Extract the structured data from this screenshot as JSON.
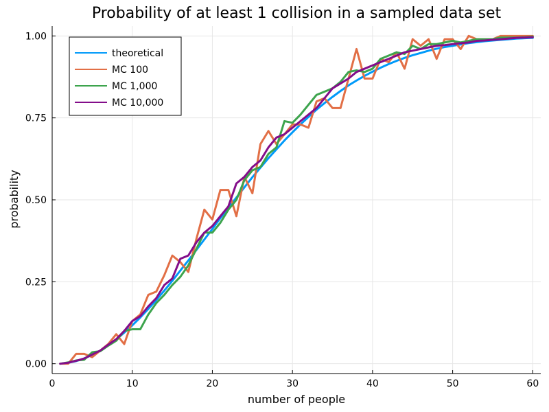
{
  "chart_data": {
    "type": "line",
    "title": "Probability of at least 1 collision in a sampled data set",
    "xlabel": "number of people",
    "ylabel": "probability",
    "xlim": [
      0,
      61
    ],
    "ylim": [
      -0.03,
      1.03
    ],
    "xticks": [
      0,
      10,
      20,
      30,
      40,
      50,
      60
    ],
    "xtick_labels": [
      "0",
      "10",
      "20",
      "30",
      "40",
      "50",
      "60"
    ],
    "yticks": [
      0.0,
      0.25,
      0.5,
      0.75,
      1.0
    ],
    "ytick_labels": [
      "0.00",
      "0.25",
      "0.50",
      "0.75",
      "1.00"
    ],
    "grid": true,
    "legend_position": "top-left",
    "x": [
      1,
      2,
      3,
      4,
      5,
      6,
      7,
      8,
      9,
      10,
      11,
      12,
      13,
      14,
      15,
      16,
      17,
      18,
      19,
      20,
      21,
      22,
      23,
      24,
      25,
      26,
      27,
      28,
      29,
      30,
      31,
      32,
      33,
      34,
      35,
      36,
      37,
      38,
      39,
      40,
      41,
      42,
      43,
      44,
      45,
      46,
      47,
      48,
      49,
      50,
      51,
      52,
      53,
      54,
      55,
      56,
      57,
      58,
      59,
      60
    ],
    "series": [
      {
        "name": "theoretical",
        "color": "#009AFA",
        "values": [
          0.0,
          0.003,
          0.008,
          0.016,
          0.027,
          0.04,
          0.056,
          0.074,
          0.095,
          0.117,
          0.141,
          0.167,
          0.194,
          0.223,
          0.253,
          0.284,
          0.315,
          0.347,
          0.379,
          0.411,
          0.444,
          0.476,
          0.507,
          0.538,
          0.569,
          0.598,
          0.627,
          0.654,
          0.681,
          0.706,
          0.73,
          0.753,
          0.775,
          0.795,
          0.814,
          0.832,
          0.849,
          0.864,
          0.878,
          0.891,
          0.903,
          0.914,
          0.924,
          0.933,
          0.941,
          0.948,
          0.955,
          0.961,
          0.966,
          0.97,
          0.974,
          0.978,
          0.981,
          0.984,
          0.986,
          0.988,
          0.99,
          0.992,
          0.993,
          0.994
        ]
      },
      {
        "name": "MC 100",
        "color": "#E26F46",
        "values": [
          0.0,
          0.0,
          0.03,
          0.03,
          0.02,
          0.04,
          0.06,
          0.09,
          0.06,
          0.13,
          0.15,
          0.21,
          0.22,
          0.27,
          0.33,
          0.31,
          0.28,
          0.38,
          0.47,
          0.44,
          0.53,
          0.53,
          0.45,
          0.57,
          0.52,
          0.67,
          0.71,
          0.67,
          0.7,
          0.73,
          0.73,
          0.72,
          0.8,
          0.81,
          0.78,
          0.78,
          0.87,
          0.96,
          0.87,
          0.87,
          0.93,
          0.92,
          0.95,
          0.9,
          0.99,
          0.97,
          0.99,
          0.93,
          0.99,
          0.99,
          0.96,
          1.0,
          0.99,
          0.99,
          0.99,
          1.0,
          1.0,
          1.0,
          1.0,
          1.0
        ]
      },
      {
        "name": "MC 1,000",
        "color": "#3DA44D",
        "values": [
          0.0,
          0.004,
          0.01,
          0.012,
          0.035,
          0.038,
          0.055,
          0.07,
          0.1,
          0.105,
          0.105,
          0.15,
          0.185,
          0.21,
          0.24,
          0.265,
          0.3,
          0.35,
          0.4,
          0.4,
          0.43,
          0.47,
          0.5,
          0.56,
          0.59,
          0.6,
          0.64,
          0.66,
          0.74,
          0.735,
          0.76,
          0.79,
          0.82,
          0.83,
          0.84,
          0.86,
          0.89,
          0.895,
          0.89,
          0.9,
          0.93,
          0.94,
          0.95,
          0.945,
          0.97,
          0.96,
          0.975,
          0.975,
          0.98,
          0.985,
          0.98,
          0.985,
          0.99,
          0.99,
          0.99,
          0.995,
          0.995,
          0.995,
          0.996,
          0.998
        ]
      },
      {
        "name": "MC 10,000",
        "color": "#830D8A",
        "values": [
          0.0,
          0.003,
          0.009,
          0.016,
          0.028,
          0.04,
          0.058,
          0.075,
          0.1,
          0.13,
          0.145,
          0.175,
          0.2,
          0.24,
          0.26,
          0.32,
          0.33,
          0.37,
          0.4,
          0.42,
          0.45,
          0.48,
          0.55,
          0.57,
          0.6,
          0.62,
          0.66,
          0.69,
          0.7,
          0.72,
          0.74,
          0.76,
          0.78,
          0.81,
          0.84,
          0.855,
          0.87,
          0.89,
          0.9,
          0.91,
          0.92,
          0.93,
          0.94,
          0.95,
          0.955,
          0.96,
          0.965,
          0.97,
          0.972,
          0.975,
          0.978,
          0.98,
          0.985,
          0.986,
          0.988,
          0.99,
          0.992,
          0.994,
          0.995,
          0.996
        ]
      }
    ]
  }
}
